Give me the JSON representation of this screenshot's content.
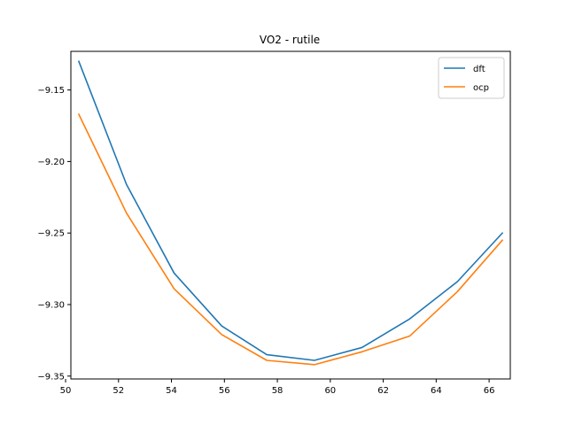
{
  "chart_data": {
    "type": "line",
    "title": "VO2 - rutile",
    "xlabel": "",
    "ylabel": "",
    "xlim": [
      50.2,
      66.8
    ],
    "ylim": [
      -9.352,
      -9.123
    ],
    "x_ticks": [
      50,
      52,
      54,
      56,
      58,
      60,
      62,
      64,
      66
    ],
    "y_ticks": [
      -9.35,
      -9.3,
      -9.25,
      -9.2,
      -9.15
    ],
    "y_tick_labels": [
      "−9.35",
      "−9.30",
      "−9.25",
      "−9.20",
      "−9.15"
    ],
    "legend_position": "top-right",
    "grid": false,
    "x": [
      50.5,
      52.3,
      54.1,
      55.9,
      57.6,
      59.4,
      61.2,
      63.0,
      64.8,
      66.5
    ],
    "series": [
      {
        "name": "dft",
        "color": "#1f77b4",
        "values": [
          -9.13,
          -9.216,
          -9.278,
          -9.315,
          -9.335,
          -9.339,
          -9.33,
          -9.31,
          -9.284,
          -9.25
        ]
      },
      {
        "name": "ocp",
        "color": "#ff7f0e",
        "values": [
          -9.167,
          -9.236,
          -9.289,
          -9.321,
          -9.339,
          -9.342,
          -9.333,
          -9.322,
          -9.291,
          -9.255
        ]
      }
    ]
  }
}
